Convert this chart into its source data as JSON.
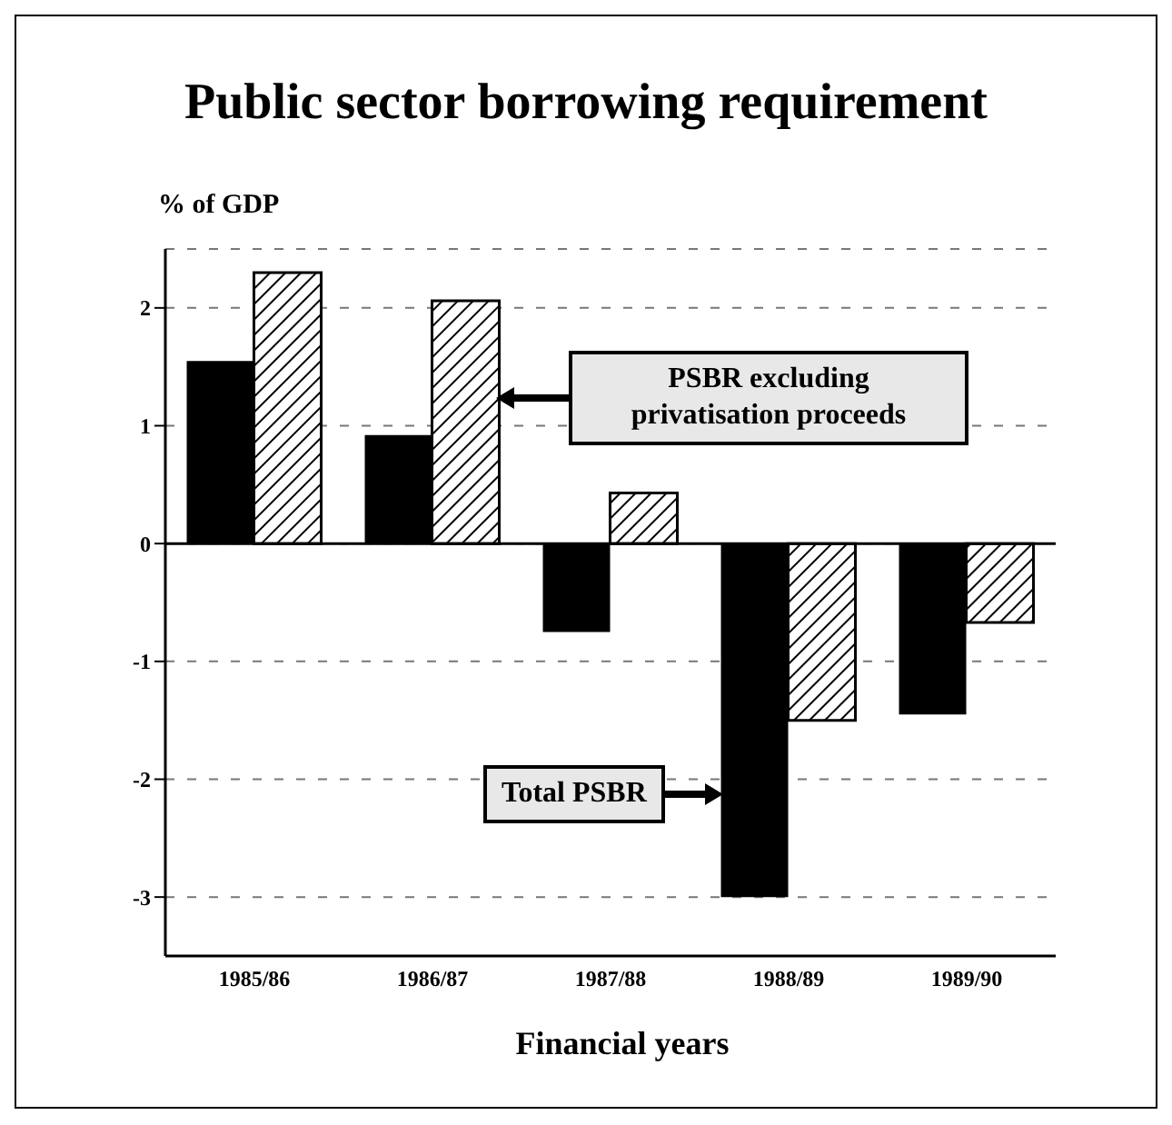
{
  "chart_data": {
    "type": "bar",
    "title": "Public sector borrowing requirement",
    "ylabel": "% of GDP",
    "xlabel": "Financial years",
    "categories": [
      "1985/86",
      "1986/87",
      "1987/88",
      "1988/89",
      "1989/90"
    ],
    "series": [
      {
        "name": "Total PSBR",
        "color": "#000000",
        "values": [
          1.55,
          0.92,
          -0.75,
          -3.0,
          -1.45
        ]
      },
      {
        "name": "PSBR excluding privatisation proceeds",
        "color": "#000000",
        "values": [
          2.3,
          2.06,
          0.43,
          -1.5,
          -0.67
        ]
      }
    ],
    "ylim": [
      -3.5,
      2.5
    ],
    "yticks": [
      {
        "value": -3,
        "label": "-3"
      },
      {
        "value": -2,
        "label": "-2"
      },
      {
        "value": -1,
        "label": "-1"
      },
      0,
      1,
      2
    ],
    "ref_lines": [
      {
        "axis": "y",
        "value": 0
      }
    ],
    "grid": "y"
  }
}
